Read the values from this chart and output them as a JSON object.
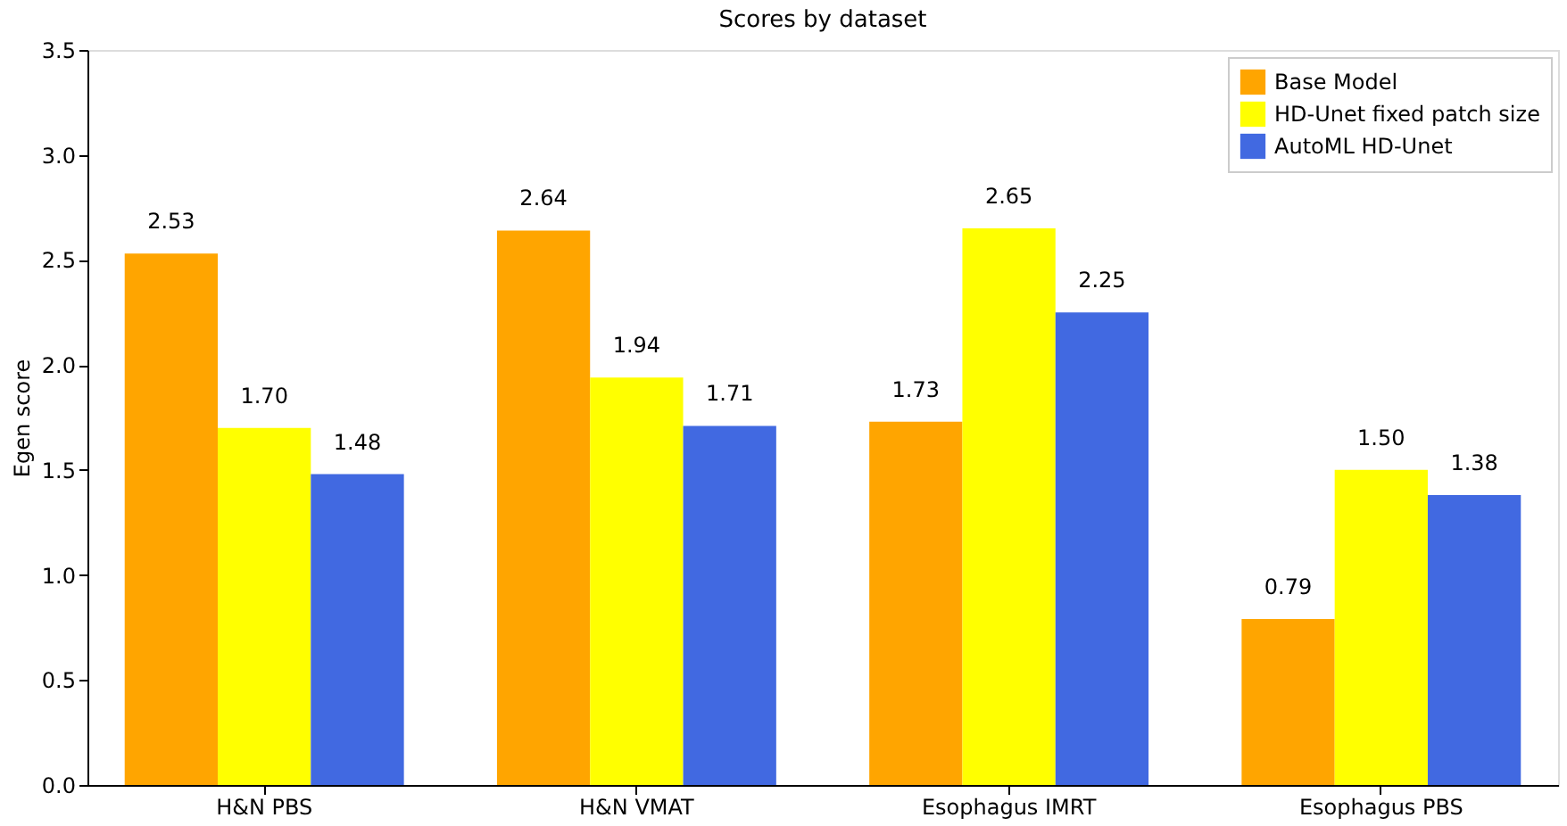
{
  "chart_data": {
    "type": "bar",
    "title": "Scores by dataset",
    "ylabel": "Egen score",
    "categories": [
      "H&N PBS",
      "H&N VMAT",
      "Esophagus IMRT",
      "Esophagus PBS"
    ],
    "series": [
      {
        "name": "Base Model",
        "color": "#ffa500",
        "values": [
          2.53,
          2.64,
          1.73,
          0.79
        ]
      },
      {
        "name": "HD-Unet fixed patch size",
        "color": "#ffff00",
        "values": [
          1.7,
          1.94,
          2.65,
          1.5
        ]
      },
      {
        "name": "AutoML HD-Unet",
        "color": "#4169e1",
        "values": [
          1.48,
          1.71,
          2.25,
          1.38
        ]
      }
    ],
    "value_labels": [
      [
        "2.53",
        "2.64",
        "1.73",
        "0.79"
      ],
      [
        "1.70",
        "1.94",
        "2.65",
        "1.50"
      ],
      [
        "1.48",
        "1.71",
        "2.25",
        "1.38"
      ]
    ],
    "ylim": [
      0,
      3.5
    ],
    "yticks": [
      {
        "value": 0,
        "label": "0.0"
      },
      {
        "value": 0.5,
        "label": "0.5"
      },
      {
        "value": 1,
        "label": "1.0"
      },
      {
        "value": 1.5,
        "label": "1.5"
      },
      {
        "value": 2,
        "label": "2.0"
      },
      {
        "value": 2.5,
        "label": "2.5"
      },
      {
        "value": 3,
        "label": "3.0"
      },
      {
        "value": 3.5,
        "label": "3.5"
      }
    ],
    "grid": false,
    "legend": "top right"
  }
}
